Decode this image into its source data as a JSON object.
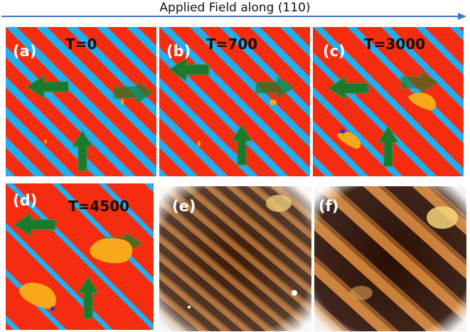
{
  "header": {
    "title": "Applied Field along (110)"
  },
  "colors": {
    "stripe_red": "#f52c0f",
    "stripe_blue": "#22aeee",
    "domain_orange": "#f9a81b",
    "arrow_green": "#1a7a2a",
    "arrow_outline": "#4a8a4a",
    "header_arrow": "#3a78c0"
  },
  "panels": [
    {
      "label": "(a)",
      "time": "T=0"
    },
    {
      "label": "(b)",
      "time": "T=700"
    },
    {
      "label": "(c)",
      "time": "T=3000"
    },
    {
      "label": "(d)",
      "time": "T=4500"
    },
    {
      "label": "(e)",
      "time": ""
    },
    {
      "label": "(f)",
      "time": ""
    }
  ]
}
